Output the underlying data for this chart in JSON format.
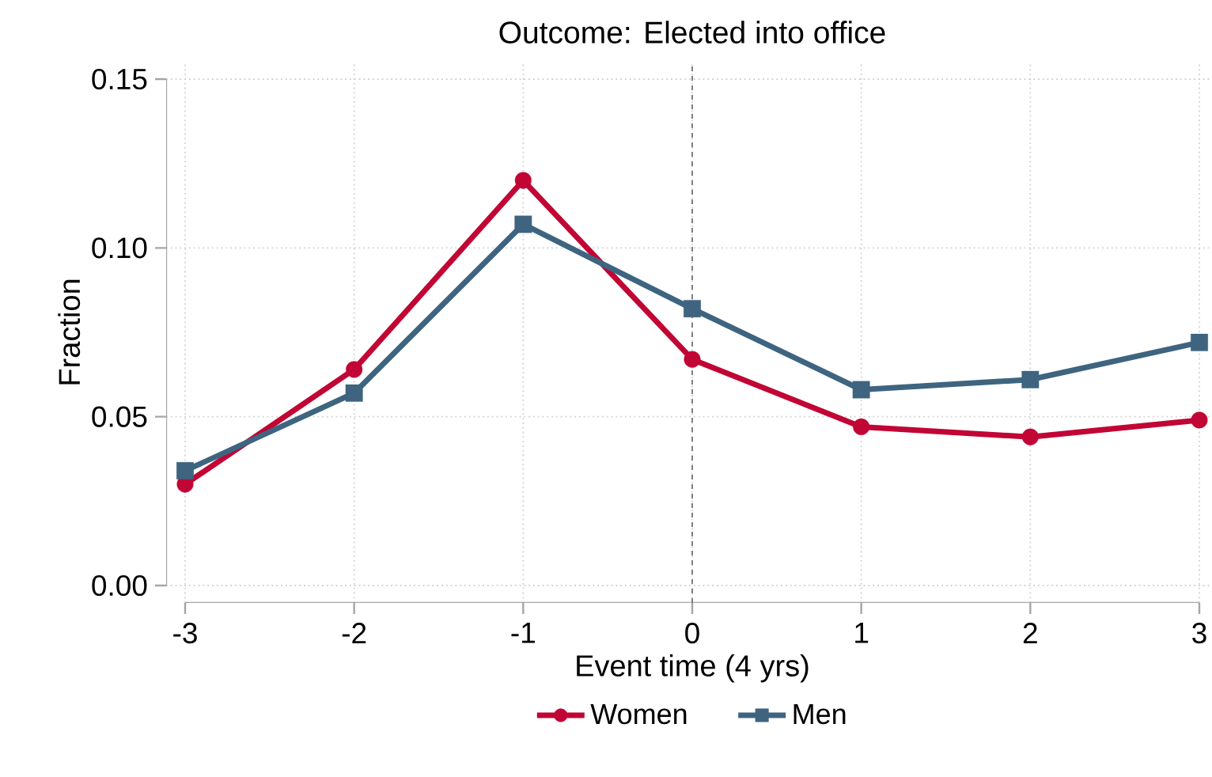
{
  "chart_data": {
    "type": "line",
    "title": "Outcome: Elected into office",
    "xlabel": "Event time (4 yrs)",
    "ylabel": "Fraction",
    "x": [
      -3,
      -2,
      -1,
      0,
      1,
      2,
      3
    ],
    "series": [
      {
        "name": "Women",
        "color": "#c10534",
        "marker": "circle",
        "values": [
          0.03,
          0.064,
          0.12,
          0.067,
          0.047,
          0.044,
          0.049
        ]
      },
      {
        "name": "Men",
        "color": "#3e6480",
        "marker": "square",
        "values": [
          0.034,
          0.057,
          0.107,
          0.082,
          0.058,
          0.061,
          0.072
        ]
      }
    ],
    "xlim": [
      -3,
      3
    ],
    "ylim": [
      0,
      0.15
    ],
    "xticks": [
      -3,
      -2,
      -1,
      0,
      1,
      2,
      3
    ],
    "yticks": [
      {
        "value": 0,
        "label": "0.00"
      },
      {
        "value": 0.05,
        "label": "0.05"
      },
      {
        "value": 0.1,
        "label": "0.10"
      },
      {
        "value": 0.15,
        "label": "0.15"
      }
    ],
    "grid": true,
    "legend": "bottom",
    "ref_lines": [
      {
        "axis": "x",
        "value": 0,
        "color": "#7f7f7f",
        "line_style": "dashed"
      }
    ]
  }
}
